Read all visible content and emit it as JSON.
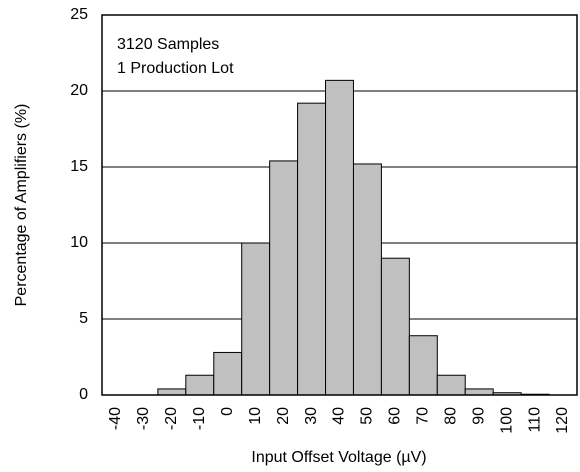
{
  "chart_data": {
    "type": "bar",
    "xlabel": "Input Offset Voltage (µV)",
    "ylabel": "Percentage of Amplifiers (%)",
    "annotations": [
      "3120 Samples",
      "1 Production Lot"
    ],
    "categories": [
      -40,
      -30,
      -20,
      -10,
      0,
      10,
      20,
      30,
      40,
      50,
      60,
      70,
      80,
      90,
      100,
      110,
      120
    ],
    "values": [
      0,
      0,
      0.4,
      1.3,
      2.8,
      10,
      15.4,
      19.2,
      20.7,
      15.2,
      9,
      3.9,
      1.3,
      0.4,
      0.15,
      0.05,
      0
    ],
    "color": "#c0c0c0",
    "ylim": [
      0,
      25
    ],
    "yticks": [
      0,
      5,
      10,
      15,
      20,
      25
    ],
    "grid": true
  }
}
